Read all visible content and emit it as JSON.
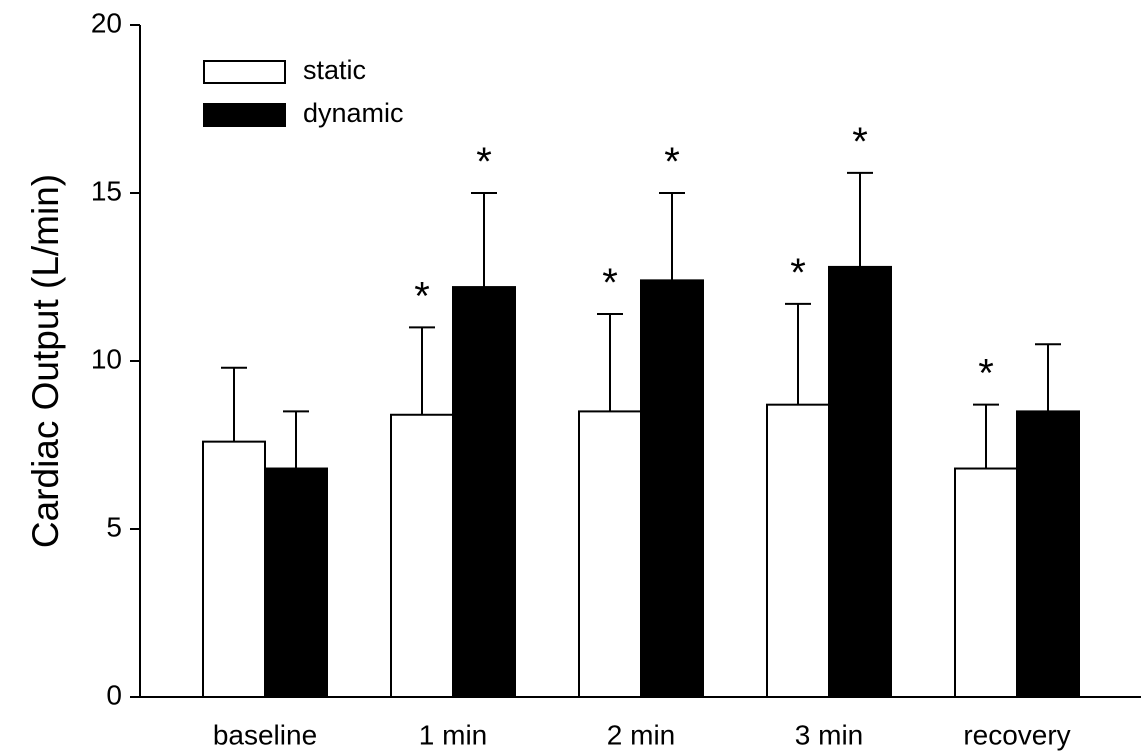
{
  "chart_data": {
    "type": "bar",
    "y_label": "Cardiac Output (L/min)",
    "categories": [
      "baseline",
      "1 min",
      "2 min",
      "3 min",
      "recovery"
    ],
    "series": [
      {
        "name": "static",
        "color": "#ffffff",
        "values": [
          7.6,
          8.4,
          8.5,
          8.7,
          6.8
        ],
        "errors": [
          2.2,
          2.6,
          2.9,
          3.0,
          1.9
        ],
        "significance": [
          null,
          "*",
          "*",
          "*",
          "*"
        ]
      },
      {
        "name": "dynamic",
        "color": "#000000",
        "values": [
          6.8,
          12.2,
          12.4,
          12.8,
          8.5
        ],
        "errors": [
          1.7,
          2.8,
          2.6,
          2.8,
          2.0
        ],
        "significance": [
          null,
          "*",
          "*",
          "*",
          null
        ]
      }
    ],
    "ylim": [
      0,
      20
    ],
    "yticks": [
      0,
      5,
      10,
      15,
      20
    ],
    "legend": "upper left"
  }
}
